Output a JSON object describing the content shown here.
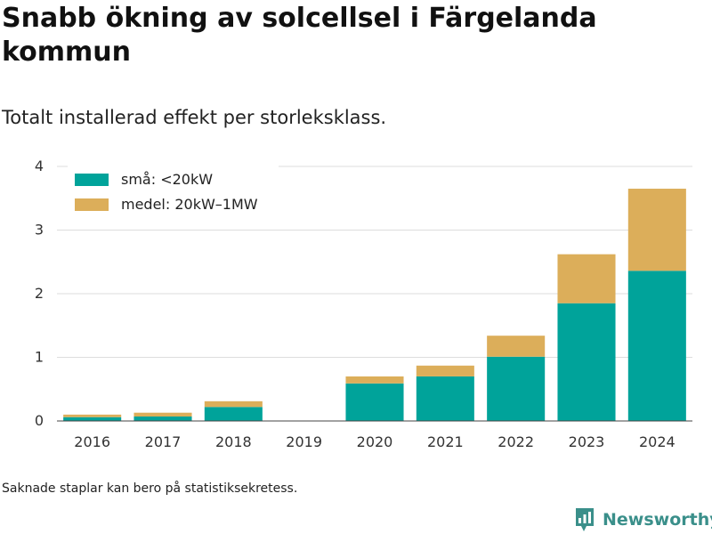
{
  "title": "Snabb ökning av solcellsel i Färgelanda kommun",
  "subtitle": "Totalt installerad effekt per storleksklass.",
  "footnote": "Saknade staplar kan bero på statistiksekretess.",
  "brand": {
    "name": "Newsworthy",
    "icon": "newsworthy-logo-icon",
    "color": "#3a8f8a"
  },
  "chart_data": {
    "type": "bar",
    "stacked": true,
    "categories": [
      "2016",
      "2017",
      "2018",
      "2019",
      "2020",
      "2021",
      "2022",
      "2023",
      "2024"
    ],
    "series": [
      {
        "name": "små: <20kW",
        "color": "#00a39a",
        "values": [
          0.06,
          0.07,
          0.22,
          0,
          0.59,
          0.7,
          1.01,
          1.85,
          2.36
        ]
      },
      {
        "name": "medel: 20kW–1MW",
        "color": "#dcae5a",
        "values": [
          0.04,
          0.06,
          0.09,
          0,
          0.11,
          0.17,
          0.33,
          0.77,
          1.29
        ]
      }
    ],
    "ylim": [
      0,
      4
    ],
    "yticks": [
      0,
      1,
      2,
      3,
      4
    ],
    "xlabel": "",
    "ylabel": "",
    "grid": true,
    "legend_position": "top-left"
  }
}
